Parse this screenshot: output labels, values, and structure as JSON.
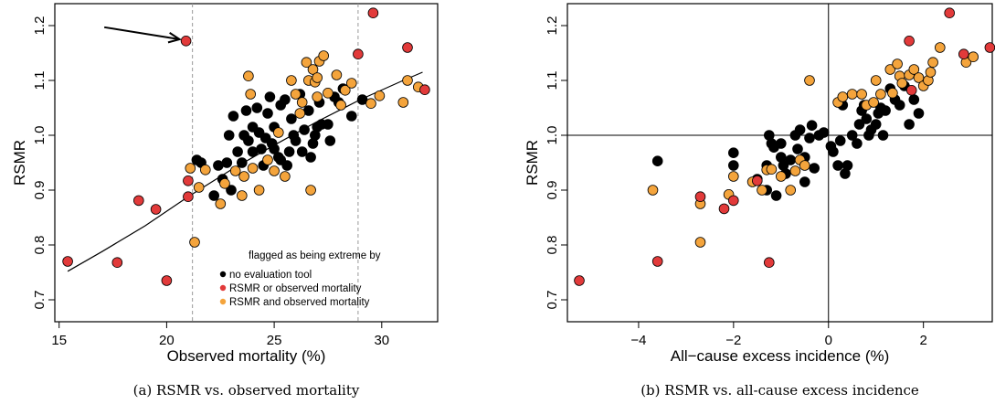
{
  "colors": {
    "black": "#000000",
    "red": "#e23a3a",
    "orange": "#f4a43c"
  },
  "legend": {
    "title": "flagged as being extreme by",
    "items": [
      {
        "label": "no evaluation tool",
        "group": "k"
      },
      {
        "label": "RSMR   or  observed mortality",
        "group": "r"
      },
      {
        "label": "RSMR and observed mortality",
        "group": "o"
      }
    ]
  },
  "chart_data": [
    {
      "type": "scatter",
      "caption": "(a)  RSMR vs. observed mortality",
      "xlabel": "Observed mortality (%)",
      "ylabel": "RSMR",
      "xlim": [
        14.8,
        32.6
      ],
      "ylim": [
        0.66,
        1.24
      ],
      "xticks": [
        15,
        20,
        25,
        30
      ],
      "yticks": [
        0.7,
        0.8,
        0.9,
        1.0,
        1.1,
        1.2
      ],
      "ytick_labels": [
        "0.7",
        "0.8",
        "0.9",
        "1.0",
        "1.1",
        "1.2"
      ],
      "vlines_dashed": [
        21.2,
        28.9
      ],
      "fit_curve": [
        [
          15.4,
          0.752
        ],
        [
          17,
          0.788
        ],
        [
          19,
          0.835
        ],
        [
          21,
          0.888
        ],
        [
          23,
          0.937
        ],
        [
          25,
          0.982
        ],
        [
          27,
          1.025
        ],
        [
          29,
          1.065
        ],
        [
          31,
          1.1
        ],
        [
          31.9,
          1.115
        ]
      ],
      "annotation_arrow": {
        "from": [
          17.1,
          1.197
        ],
        "to": [
          20.6,
          1.175
        ]
      },
      "points": {
        "k": [
          [
            22.2,
            0.89
          ],
          [
            22.4,
            0.945
          ],
          [
            22.8,
            0.95
          ],
          [
            22.9,
            1.0
          ],
          [
            23.1,
            1.035
          ],
          [
            23.3,
            0.97
          ],
          [
            23.5,
            0.95
          ],
          [
            23.6,
            1.0
          ],
          [
            23.7,
            1.045
          ],
          [
            23.8,
            0.99
          ],
          [
            24.0,
            1.015
          ],
          [
            24.0,
            0.97
          ],
          [
            24.2,
            1.05
          ],
          [
            24.3,
            1.005
          ],
          [
            24.4,
            0.975
          ],
          [
            24.5,
            0.945
          ],
          [
            24.6,
            0.995
          ],
          [
            24.7,
            1.04
          ],
          [
            24.9,
            0.985
          ],
          [
            25.0,
            0.975
          ],
          [
            25.0,
            1.015
          ],
          [
            25.2,
            0.96
          ],
          [
            25.3,
            1.055
          ],
          [
            25.5,
            1.065
          ],
          [
            25.6,
            0.945
          ],
          [
            25.7,
            0.97
          ],
          [
            25.8,
            1.03
          ],
          [
            25.9,
            1.0
          ],
          [
            26.0,
            0.99
          ],
          [
            26.2,
            1.075
          ],
          [
            26.3,
            0.97
          ],
          [
            26.4,
            1.01
          ],
          [
            26.6,
            1.045
          ],
          [
            26.7,
            0.96
          ],
          [
            26.9,
            1.0
          ],
          [
            27.0,
            1.015
          ],
          [
            27.1,
            1.06
          ],
          [
            27.2,
            1.02
          ],
          [
            27.5,
            1.02
          ],
          [
            27.8,
            1.07
          ],
          [
            28.0,
            1.06
          ],
          [
            28.2,
            1.085
          ],
          [
            28.6,
            1.035
          ],
          [
            29.1,
            1.065
          ],
          [
            21.4,
            0.955
          ],
          [
            21.6,
            0.95
          ],
          [
            22.6,
            0.92
          ],
          [
            23.0,
            0.9
          ],
          [
            25.3,
            0.955
          ],
          [
            26.8,
            0.985
          ],
          [
            24.8,
            1.07
          ],
          [
            27.6,
            0.99
          ]
        ],
        "r": [
          [
            15.4,
            0.77
          ],
          [
            17.7,
            0.768
          ],
          [
            18.7,
            0.881
          ],
          [
            19.5,
            0.865
          ],
          [
            20.0,
            0.735
          ],
          [
            20.9,
            1.172
          ],
          [
            21.0,
            0.888
          ],
          [
            21.0,
            0.917
          ],
          [
            28.9,
            1.148
          ],
          [
            29.6,
            1.223
          ],
          [
            31.2,
            1.16
          ],
          [
            32.0,
            1.083
          ]
        ],
        "o": [
          [
            21.1,
            0.94
          ],
          [
            21.3,
            0.805
          ],
          [
            21.5,
            0.905
          ],
          [
            21.8,
            0.937
          ],
          [
            22.5,
            0.875
          ],
          [
            22.7,
            0.912
          ],
          [
            23.2,
            0.935
          ],
          [
            23.6,
            0.925
          ],
          [
            23.8,
            1.108
          ],
          [
            23.9,
            1.075
          ],
          [
            24.0,
            0.94
          ],
          [
            24.3,
            0.9
          ],
          [
            24.7,
            0.955
          ],
          [
            25.0,
            0.935
          ],
          [
            25.2,
            1.005
          ],
          [
            25.5,
            0.925
          ],
          [
            25.8,
            1.1
          ],
          [
            26.0,
            1.075
          ],
          [
            26.2,
            1.04
          ],
          [
            26.3,
            1.06
          ],
          [
            26.5,
            1.133
          ],
          [
            26.6,
            1.1
          ],
          [
            26.7,
            0.9
          ],
          [
            26.8,
            1.12
          ],
          [
            26.9,
            1.097
          ],
          [
            27.0,
            1.105
          ],
          [
            27.1,
            1.135
          ],
          [
            27.3,
            1.145
          ],
          [
            27.5,
            1.077
          ],
          [
            27.9,
            1.11
          ],
          [
            28.1,
            1.055
          ],
          [
            28.3,
            1.082
          ],
          [
            28.6,
            1.095
          ],
          [
            29.5,
            1.058
          ],
          [
            29.9,
            1.072
          ],
          [
            31.0,
            1.06
          ],
          [
            31.2,
            1.1
          ],
          [
            31.7,
            1.088
          ],
          [
            27.0,
            1.07
          ],
          [
            23.5,
            0.89
          ]
        ]
      }
    },
    {
      "type": "scatter",
      "caption": "(b)  RSMR vs. all-cause excess incidence",
      "xlabel": "All−cause excess incidence (%)",
      "ylabel": "RSMR",
      "xlim": [
        -5.5,
        3.45
      ],
      "ylim": [
        0.66,
        1.24
      ],
      "xticks": [
        -4,
        -2,
        0,
        2
      ],
      "xtick_labels": [
        "−4",
        "−2",
        "0",
        "2"
      ],
      "yticks": [
        0.7,
        0.8,
        0.9,
        1.0,
        1.1,
        1.2
      ],
      "ytick_labels": [
        "0.7",
        "0.8",
        "0.9",
        "1.0",
        "1.1",
        "1.2"
      ],
      "hline": 1.0,
      "vline": 0,
      "points": {
        "k": [
          [
            -3.6,
            0.953
          ],
          [
            -2.0,
            0.968
          ],
          [
            -2.0,
            0.945
          ],
          [
            -1.3,
            0.9
          ],
          [
            -1.3,
            0.945
          ],
          [
            -1.25,
            1.0
          ],
          [
            -1.2,
            0.985
          ],
          [
            -1.15,
            0.978
          ],
          [
            -1.1,
            0.89
          ],
          [
            -1.0,
            0.985
          ],
          [
            -0.95,
            0.945
          ],
          [
            -0.9,
            0.93
          ],
          [
            -0.8,
            0.955
          ],
          [
            -0.7,
            1.0
          ],
          [
            -0.65,
            0.975
          ],
          [
            -0.6,
            1.01
          ],
          [
            -0.5,
            0.96
          ],
          [
            -0.4,
            0.995
          ],
          [
            -0.35,
            1.018
          ],
          [
            -0.3,
            0.94
          ],
          [
            -0.2,
            1.0
          ],
          [
            -0.1,
            1.005
          ],
          [
            0.05,
            0.98
          ],
          [
            0.1,
            0.97
          ],
          [
            0.2,
            0.945
          ],
          [
            0.3,
            1.055
          ],
          [
            0.35,
            0.93
          ],
          [
            0.4,
            0.945
          ],
          [
            0.5,
            1.0
          ],
          [
            0.6,
            0.985
          ],
          [
            0.7,
            1.045
          ],
          [
            0.75,
            1.055
          ],
          [
            0.8,
            1.03
          ],
          [
            0.85,
            1.0
          ],
          [
            0.9,
            1.01
          ],
          [
            1.0,
            1.02
          ],
          [
            1.05,
            1.04
          ],
          [
            1.1,
            1.05
          ],
          [
            1.2,
            1.045
          ],
          [
            1.3,
            1.085
          ],
          [
            1.4,
            1.065
          ],
          [
            1.5,
            1.055
          ],
          [
            1.7,
            1.02
          ],
          [
            1.8,
            1.065
          ],
          [
            1.9,
            1.04
          ],
          [
            -1.5,
            0.92
          ],
          [
            -0.5,
            0.915
          ],
          [
            0.25,
            0.99
          ],
          [
            1.15,
            1.0
          ],
          [
            0.65,
            1.02
          ],
          [
            1.6,
            1.09
          ],
          [
            -1.0,
            0.96
          ]
        ],
        "r": [
          [
            -5.25,
            0.735
          ],
          [
            -3.6,
            0.77
          ],
          [
            -2.7,
            0.888
          ],
          [
            -2.2,
            0.866
          ],
          [
            -2.0,
            0.881
          ],
          [
            -1.5,
            0.917
          ],
          [
            -1.25,
            0.768
          ],
          [
            1.7,
            1.172
          ],
          [
            1.75,
            1.082
          ],
          [
            2.55,
            1.223
          ],
          [
            2.85,
            1.148
          ],
          [
            3.4,
            1.16
          ]
        ],
        "o": [
          [
            -3.7,
            0.9
          ],
          [
            -2.7,
            0.875
          ],
          [
            -2.7,
            0.805
          ],
          [
            -2.1,
            0.892
          ],
          [
            -2.0,
            0.925
          ],
          [
            -1.6,
            0.915
          ],
          [
            -1.4,
            0.9
          ],
          [
            -1.3,
            0.937
          ],
          [
            -1.2,
            0.938
          ],
          [
            -1.0,
            0.925
          ],
          [
            -0.8,
            0.9
          ],
          [
            -0.7,
            0.935
          ],
          [
            -0.6,
            0.955
          ],
          [
            -0.5,
            0.945
          ],
          [
            -0.4,
            1.1
          ],
          [
            0.2,
            1.06
          ],
          [
            0.3,
            1.07
          ],
          [
            0.5,
            1.075
          ],
          [
            0.7,
            1.075
          ],
          [
            0.8,
            1.055
          ],
          [
            1.0,
            1.1
          ],
          [
            1.1,
            1.075
          ],
          [
            1.3,
            1.12
          ],
          [
            1.35,
            1.077
          ],
          [
            1.5,
            1.108
          ],
          [
            1.55,
            1.095
          ],
          [
            1.7,
            1.11
          ],
          [
            1.8,
            1.12
          ],
          [
            1.9,
            1.105
          ],
          [
            2.0,
            1.09
          ],
          [
            2.1,
            1.1
          ],
          [
            2.2,
            1.133
          ],
          [
            2.15,
            1.115
          ],
          [
            2.9,
            1.133
          ],
          [
            3.05,
            1.143
          ],
          [
            1.45,
            1.13
          ],
          [
            0.95,
            1.06
          ],
          [
            2.35,
            1.16
          ]
        ]
      }
    }
  ]
}
